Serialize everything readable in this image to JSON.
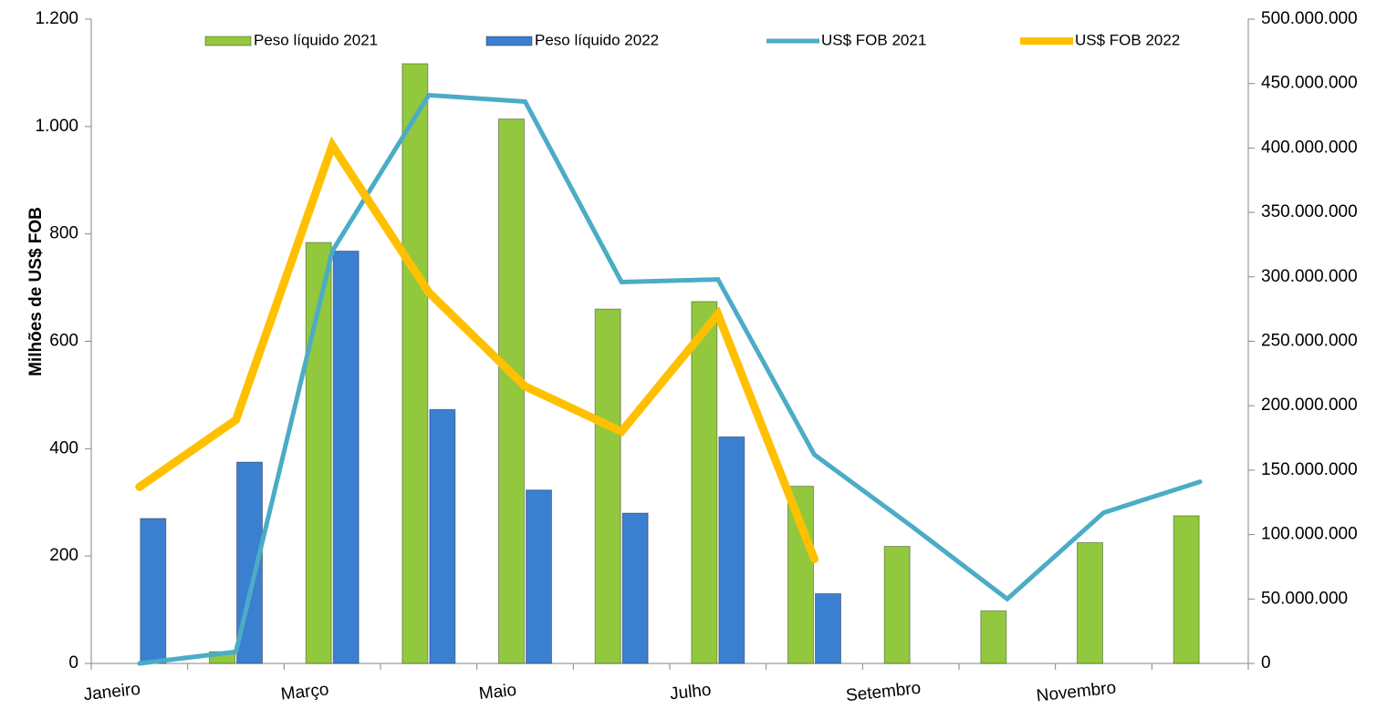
{
  "chart_data": {
    "type": "bar-line",
    "y_label": "Milhões de US$ FOB",
    "categories": [
      "Janeiro",
      null,
      "Março",
      null,
      "Maio",
      null,
      "Julho",
      null,
      "Setembro",
      null,
      "Novembro",
      null
    ],
    "series": [
      {
        "name": "Peso líquido 2021",
        "type": "bar",
        "color": "#92c83e",
        "axis": "y",
        "values": [
          null,
          22,
          784,
          1117,
          1014,
          660,
          674,
          330,
          218,
          98,
          225,
          275
        ]
      },
      {
        "name": "Peso líquido 2022",
        "type": "bar",
        "color": "#3b7fd0",
        "axis": "y",
        "values": [
          270,
          375,
          768,
          473,
          323,
          280,
          422,
          130,
          null,
          null,
          null,
          null
        ]
      },
      {
        "name": "US$ FOB 2021",
        "type": "line",
        "color": "#4bacc6",
        "axis": "y2",
        "values": [
          0,
          9000000,
          320000000,
          441000000,
          436000000,
          296000000,
          298000000,
          162000000,
          107000000,
          50000000,
          117000000,
          141000000
        ]
      },
      {
        "name": "US$ FOB 2022",
        "type": "line",
        "color": "#ffc000",
        "axis": "y2",
        "values": [
          137000000,
          189000000,
          402000000,
          288000000,
          215000000,
          180000000,
          271000000,
          81000000,
          null,
          null,
          null,
          null
        ]
      }
    ],
    "ylim": [
      0,
      1200
    ],
    "yticks": [
      0,
      200,
      400,
      600,
      800,
      {
        "value": 1000,
        "label": "1.000"
      },
      {
        "value": 1200,
        "label": "1.200"
      }
    ],
    "y2lim": [
      0,
      500000000
    ],
    "y2ticks": [
      0,
      {
        "value": 50000000,
        "label": "50.000.000"
      },
      {
        "value": 100000000,
        "label": "100.000.000"
      },
      {
        "value": 150000000,
        "label": "150.000.000"
      },
      {
        "value": 200000000,
        "label": "200.000.000"
      },
      {
        "value": 250000000,
        "label": "250.000.000"
      },
      {
        "value": 300000000,
        "label": "300.000.000"
      },
      {
        "value": 350000000,
        "label": "350.000.000"
      },
      {
        "value": 400000000,
        "label": "400.000.000"
      },
      {
        "value": 450000000,
        "label": "450.000.000"
      },
      {
        "value": 500000000,
        "label": "500.000.000"
      }
    ]
  }
}
